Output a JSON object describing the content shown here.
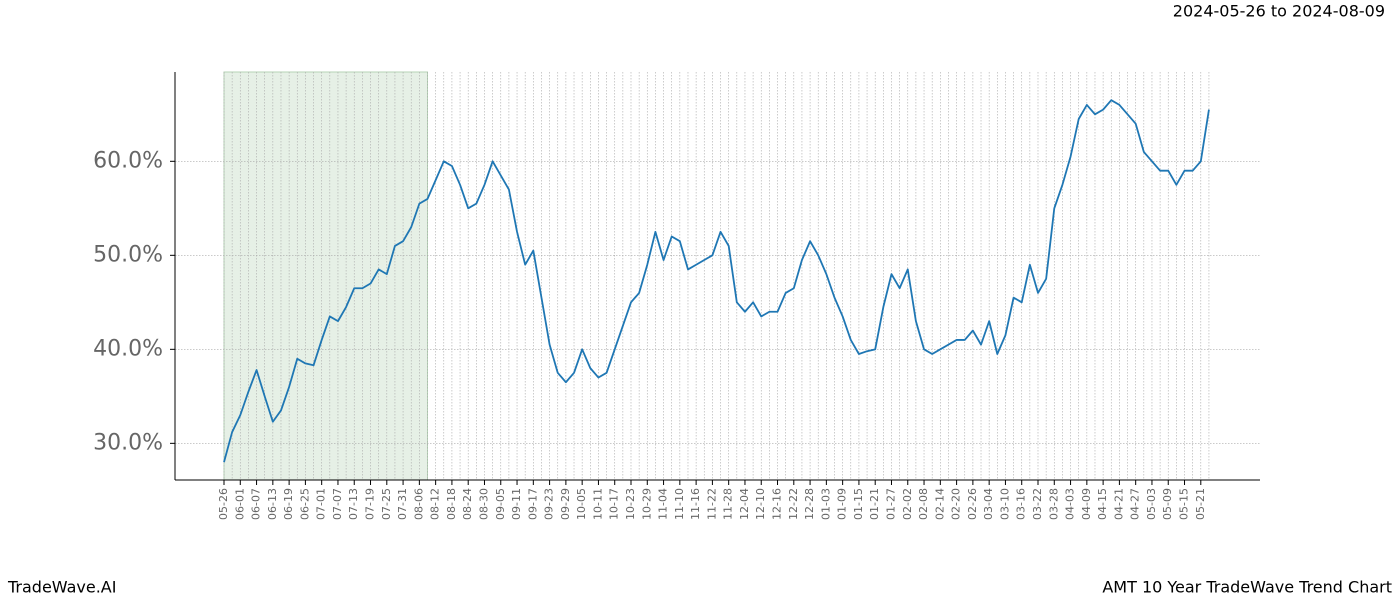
{
  "chart_data": {
    "type": "line",
    "title": "2024-05-26 to 2024-08-09",
    "footer_left": "TradeWave.AI",
    "footer_right": "AMT 10 Year TradeWave Trend Chart",
    "categories": [
      "05-26",
      null,
      "06-01",
      null,
      "06-07",
      null,
      "06-13",
      null,
      "06-19",
      null,
      "06-25",
      null,
      "07-01",
      null,
      "07-07",
      null,
      "07-13",
      null,
      "07-19",
      null,
      "07-25",
      null,
      "07-31",
      null,
      "08-06",
      null,
      "08-12",
      null,
      "08-18",
      null,
      "08-24",
      null,
      "08-30",
      null,
      "09-05",
      null,
      "09-11",
      null,
      "09-17",
      null,
      "09-23",
      null,
      "09-29",
      null,
      "10-05",
      null,
      "10-11",
      null,
      "10-17",
      null,
      "10-23",
      null,
      "10-29",
      null,
      "11-04",
      null,
      "11-10",
      null,
      "11-16",
      null,
      "11-22",
      null,
      "11-28",
      null,
      "12-04",
      null,
      "12-10",
      null,
      "12-16",
      null,
      "12-22",
      null,
      "12-28",
      null,
      "01-03",
      null,
      "01-09",
      null,
      "01-15",
      null,
      "01-21",
      null,
      "01-27",
      null,
      "02-02",
      null,
      "02-08",
      null,
      "02-14",
      null,
      "02-20",
      null,
      "02-26",
      null,
      "03-04",
      null,
      "03-10",
      null,
      "03-16",
      null,
      "03-22",
      null,
      "03-28",
      null,
      "04-03",
      null,
      "04-09",
      null,
      "04-15",
      null,
      "04-21",
      null,
      "04-27",
      null,
      "05-03",
      null,
      "05-09",
      null,
      "05-15",
      null,
      "05-21",
      null
    ],
    "series": [
      {
        "color": "#1f77b4",
        "values": [
          28.0,
          31.2,
          33.0,
          35.5,
          37.8,
          35.0,
          32.3,
          33.5,
          36.0,
          39.0,
          38.5,
          38.3,
          41.0,
          43.5,
          43.0,
          44.5,
          46.5,
          46.5,
          47.0,
          48.5,
          48.0,
          51.0,
          51.5,
          53.0,
          55.5,
          56.0,
          58.0,
          60.0,
          59.5,
          57.5,
          55.0,
          55.5,
          57.5,
          60.0,
          58.5,
          57.0,
          52.5,
          49.0,
          50.5,
          45.5,
          40.5,
          37.5,
          36.5,
          37.5,
          40.0,
          38.0,
          37.0,
          37.5,
          40.0,
          42.5,
          45.0,
          46.0,
          49.0,
          52.5,
          49.5,
          52.0,
          51.5,
          48.5,
          49.0,
          49.5,
          50.0,
          52.5,
          51.0,
          45.0,
          44.0,
          45.0,
          43.5,
          44.0,
          44.0,
          46.0,
          46.5,
          49.5,
          51.5,
          50.0,
          48.0,
          45.5,
          43.5,
          41.0,
          39.5,
          39.8,
          40.0,
          44.5,
          48.0,
          46.5,
          48.5,
          43.0,
          40.0,
          39.5,
          40.0,
          40.5,
          41.0,
          41.0,
          42.0,
          40.5,
          43.0,
          39.5,
          41.5,
          45.5,
          45.0,
          49.0,
          46.0,
          47.5,
          55.0,
          57.5,
          60.5,
          64.5,
          66.0,
          65.0,
          65.5,
          66.5,
          66.0,
          65.0,
          64.0,
          61.0,
          60.0,
          59.0,
          59.0,
          57.5,
          59.0,
          59.0,
          60.0,
          65.5
        ]
      }
    ],
    "ylim": [
      26.1,
      69.5
    ],
    "yticks": [
      {
        "value": 30,
        "label": "30.0%"
      },
      {
        "value": 40,
        "label": "40.0%"
      },
      {
        "value": 50,
        "label": "50.0%"
      },
      {
        "value": 60,
        "label": "60.0%"
      }
    ],
    "grid": true,
    "highlight_color": "#e6f0e6"
  }
}
